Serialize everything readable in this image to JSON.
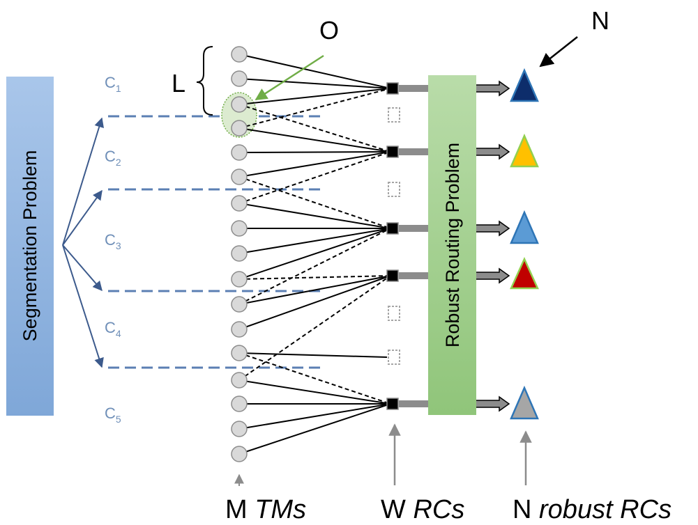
{
  "segmentation_box": {
    "label": "Segmentation Problem"
  },
  "routing_box": {
    "label": "Robust Routing Problem"
  },
  "clusters": [
    {
      "letter": "C",
      "sub": "1"
    },
    {
      "letter": "C",
      "sub": "2"
    },
    {
      "letter": "C",
      "sub": "3"
    },
    {
      "letter": "C",
      "sub": "4"
    },
    {
      "letter": "C",
      "sub": "5"
    }
  ],
  "annotations": {
    "L": "L",
    "O": "O",
    "N": "N"
  },
  "bottom_labels": {
    "tms": {
      "prefix": "M",
      "italic": "TMs"
    },
    "rcs": {
      "prefix": "W",
      "italic": "RCs"
    },
    "robust": {
      "prefix": "N",
      "italic": "robust RCs"
    }
  },
  "colors": {
    "segmentation_box": "#8fb4df",
    "routing_box": "#9fcf8c",
    "cluster_text": "#6f8fb8",
    "dashed_line": "#5b7fb3",
    "tm_node": "#d9d9d9",
    "triangles": [
      "#0d2d6b",
      "#ffc000",
      "#5b9bd5",
      "#c00000",
      "#a6a6a6"
    ],
    "triangle_borders": [
      "#2e75b6",
      "#92d050",
      "#2e75b6",
      "#92d050",
      "#2e75b6"
    ]
  }
}
